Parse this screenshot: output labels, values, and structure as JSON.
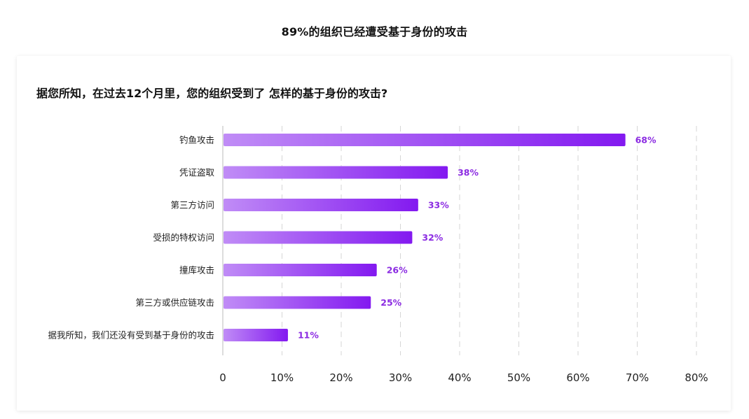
{
  "page": {
    "title": "89%的组织已经遭受基于身份的攻击"
  },
  "card": {
    "question": "据您所知，在过去12个月里，您的组织受到了 怎样的基于身份的攻击?"
  },
  "colors": {
    "bar_start": "#c08cf6",
    "bar_end": "#8319f0",
    "value_label": "#8b2be2",
    "grid": "#d6d6d6",
    "axis": "#bbbbbb"
  },
  "chart_data": {
    "type": "bar",
    "orientation": "horizontal",
    "categories": [
      "钓鱼攻击",
      "凭证盗取",
      "第三方访问",
      "受损的特权访问",
      "撞库攻击",
      "第三方或供应链攻击",
      "据我所知，我们还没有受到基于身份的攻击"
    ],
    "values": [
      68,
      38,
      33,
      32,
      26,
      25,
      11
    ],
    "value_labels": [
      "68%",
      "38%",
      "33%",
      "32%",
      "26%",
      "25%",
      "11%"
    ],
    "xlim": [
      0,
      80
    ],
    "xticks": [
      0,
      10,
      20,
      30,
      40,
      50,
      60,
      70,
      80
    ],
    "xtick_labels": [
      "0",
      "10%",
      "20%",
      "30%",
      "40%",
      "50%",
      "60%",
      "70%",
      "80%"
    ],
    "grid": true,
    "grid_style": "dashed-vertical"
  }
}
